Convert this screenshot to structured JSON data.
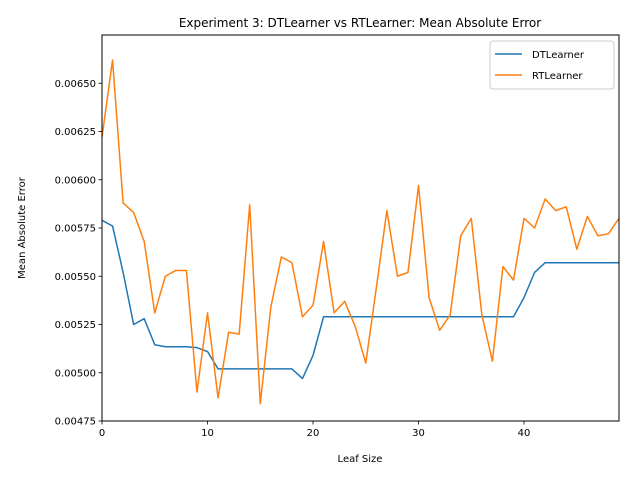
{
  "chart_data": {
    "type": "line",
    "title": "Experiment 3: DTLearner vs RTLearner: Mean Absolute Error",
    "xlabel": "Leaf Size",
    "ylabel": "Mean Absolute Error",
    "xlim": [
      0,
      49
    ],
    "ylim": [
      0.00475,
      0.00675
    ],
    "xticks": [
      0,
      10,
      20,
      30,
      40
    ],
    "yticks": [
      0.00475,
      0.005,
      0.00525,
      0.0055,
      0.00575,
      0.006,
      0.00625,
      0.0065
    ],
    "ytick_labels": [
      "0.00475",
      "0.00500",
      "0.00525",
      "0.00550",
      "0.00575",
      "0.00600",
      "0.00625",
      "0.00650"
    ],
    "legend_position": "top-right",
    "grid": false,
    "x": [
      0,
      1,
      2,
      3,
      4,
      5,
      6,
      7,
      8,
      9,
      10,
      11,
      12,
      13,
      14,
      15,
      16,
      17,
      18,
      19,
      20,
      21,
      22,
      23,
      24,
      25,
      26,
      27,
      28,
      29,
      30,
      31,
      32,
      33,
      34,
      35,
      36,
      37,
      38,
      39,
      40,
      41,
      42,
      43,
      44,
      45,
      46,
      47,
      48,
      49
    ],
    "series": [
      {
        "name": "DTLearner",
        "color": "#1f77b4",
        "values": [
          0.00579,
          0.00576,
          0.00552,
          0.00525,
          0.00528,
          0.005145,
          0.005135,
          0.005135,
          0.005135,
          0.00513,
          0.00511,
          0.00502,
          0.00502,
          0.00502,
          0.00502,
          0.00502,
          0.00502,
          0.00502,
          0.00502,
          0.00497,
          0.00509,
          0.00529,
          0.00529,
          0.00529,
          0.00529,
          0.00529,
          0.00529,
          0.00529,
          0.00529,
          0.00529,
          0.00529,
          0.00529,
          0.00529,
          0.00529,
          0.00529,
          0.00529,
          0.00529,
          0.00529,
          0.00529,
          0.00529,
          0.00539,
          0.00552,
          0.00557,
          0.00557,
          0.00557,
          0.00557,
          0.00557,
          0.00557,
          0.00557,
          0.00557
        ]
      },
      {
        "name": "RTLearner",
        "color": "#ff7f0e",
        "values": [
          0.00622,
          0.00662,
          0.00588,
          0.00583,
          0.00568,
          0.00531,
          0.0055,
          0.00553,
          0.00553,
          0.0049,
          0.00531,
          0.00487,
          0.00521,
          0.0052,
          0.00587,
          0.00484,
          0.00534,
          0.0056,
          0.00557,
          0.00529,
          0.00535,
          0.00568,
          0.00531,
          0.00537,
          0.00524,
          0.00505,
          0.00544,
          0.00584,
          0.0055,
          0.00552,
          0.00597,
          0.00539,
          0.00522,
          0.0053,
          0.00571,
          0.0058,
          0.0053,
          0.00506,
          0.00555,
          0.00548,
          0.0058,
          0.00575,
          0.0059,
          0.00584,
          0.00586,
          0.00564,
          0.00581,
          0.00571,
          0.00572,
          0.0058
        ]
      }
    ]
  }
}
